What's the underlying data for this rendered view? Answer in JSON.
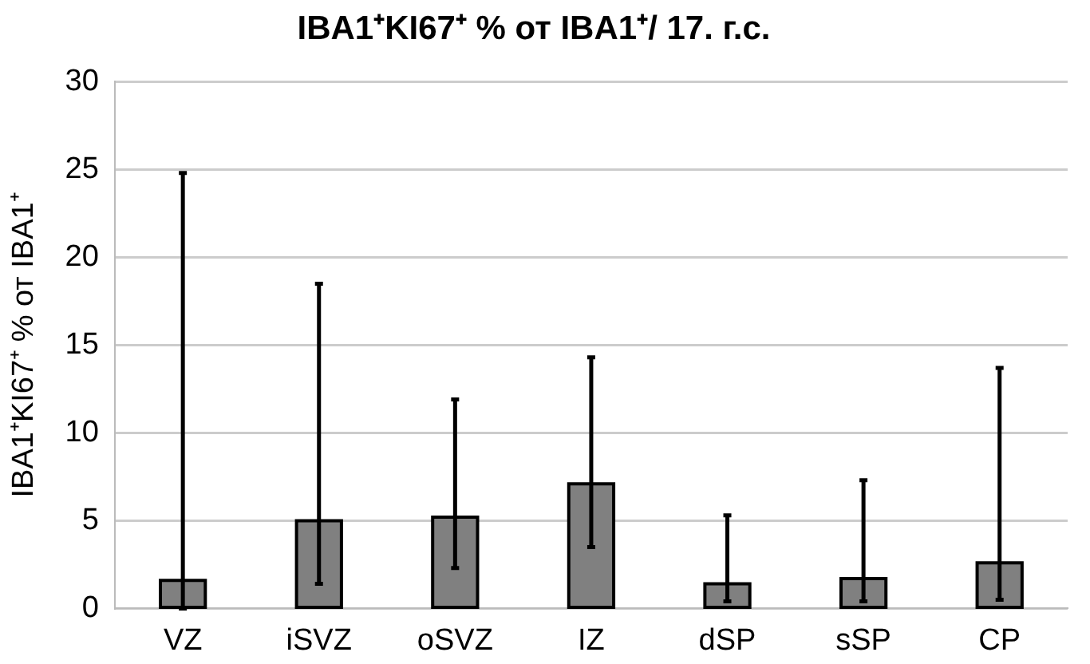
{
  "chart_data": {
    "type": "bar",
    "title": "IBA1⁺KI67⁺ % от IBA1⁺/ 17. г.с.",
    "ylabel": "IBA1⁺KI67⁺ % от IBA1⁺",
    "categories": [
      "VZ",
      "iSVZ",
      "oSVZ",
      "IZ",
      "dSP",
      "sSP",
      "CP"
    ],
    "values": [
      1.6,
      5.0,
      5.2,
      7.1,
      1.4,
      1.7,
      2.6
    ],
    "errors": [
      [
        0,
        24.8
      ],
      [
        1.4,
        18.5
      ],
      [
        2.3,
        11.9
      ],
      [
        3.5,
        14.3
      ],
      [
        0.4,
        5.3
      ],
      [
        0.4,
        7.3
      ],
      [
        0.5,
        13.7
      ]
    ],
    "color": "#808080",
    "ylim": [
      0,
      30
    ],
    "yticks": [
      0,
      5,
      10,
      15,
      20,
      25,
      30
    ],
    "grid": "y",
    "legend": false
  }
}
